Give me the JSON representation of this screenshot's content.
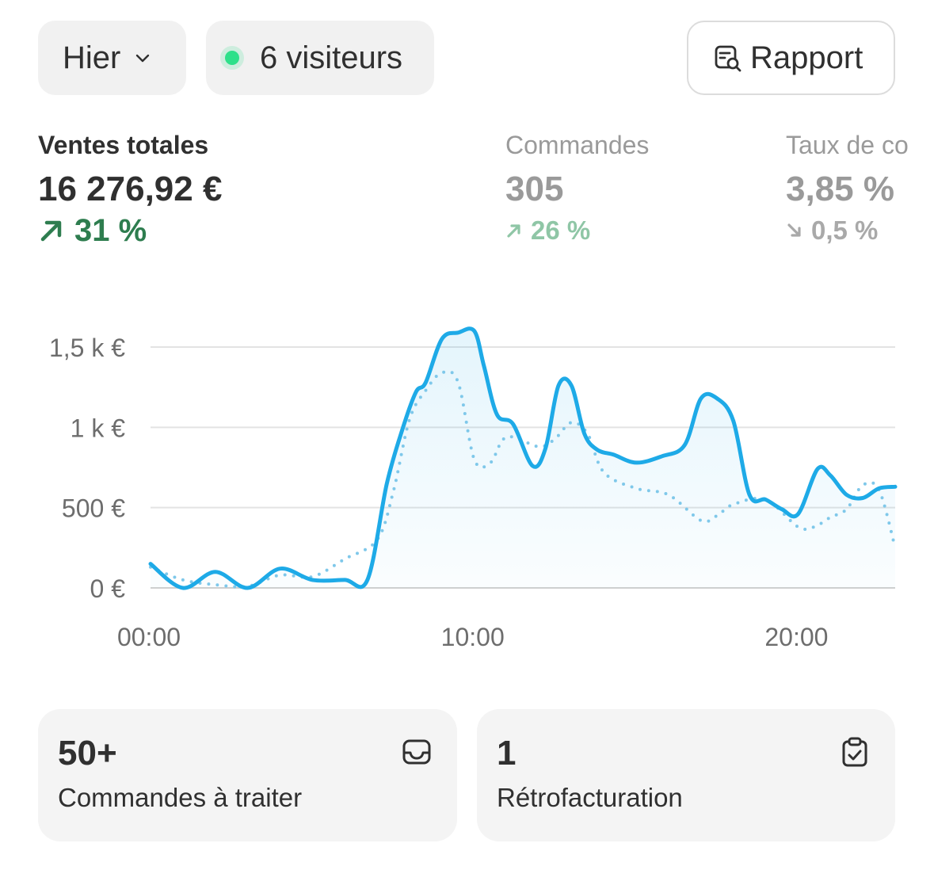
{
  "header": {
    "period_label": "Hier",
    "visitors_label": "6 visiteurs",
    "report_label": "Rapport",
    "live_color": "#2ee08a"
  },
  "metrics": [
    {
      "label": "Ventes totales",
      "value": "16 276,92 €",
      "change": "31 %",
      "trend": "up"
    },
    {
      "label": "Commandes",
      "value": "305",
      "change": "26 %",
      "trend": "up"
    },
    {
      "label": "Taux de co",
      "value": "3,85 %",
      "change": "0,5 %",
      "trend": "down"
    }
  ],
  "chart_data": {
    "type": "line",
    "y_ticks": [
      {
        "value": 0,
        "label": "0 €"
      },
      {
        "value": 500,
        "label": "500 €"
      },
      {
        "value": 1000,
        "label": "1 k €"
      },
      {
        "value": 1500,
        "label": "1,5 k €"
      }
    ],
    "x_ticks": [
      {
        "value": 0,
        "label": "00:00"
      },
      {
        "value": 10,
        "label": "10:00"
      },
      {
        "value": 20,
        "label": "20:00"
      }
    ],
    "xlim": [
      0,
      23
    ],
    "ylim": [
      0,
      1500
    ],
    "grid": true,
    "series": [
      {
        "style": "solid",
        "color": "#1eaae7",
        "x": [
          0,
          1,
          2,
          3,
          4,
          5,
          6,
          6.7,
          7.3,
          7.8,
          8.2,
          8.5,
          9.0,
          9.5,
          10.0,
          10.3,
          10.7,
          11.2,
          11.8,
          12.2,
          12.6,
          13.0,
          13.4,
          13.8,
          14.3,
          15.0,
          15.8,
          16.5,
          17.0,
          17.5,
          18.0,
          18.5,
          19.0,
          19.5,
          20.0,
          20.6,
          21.0,
          21.5,
          22.0,
          22.5,
          23.0
        ],
        "y": [
          150,
          0,
          100,
          0,
          120,
          50,
          50,
          50,
          650,
          1000,
          1220,
          1280,
          1550,
          1590,
          1600,
          1380,
          1080,
          1020,
          760,
          870,
          1260,
          1260,
          960,
          860,
          830,
          780,
          820,
          890,
          1180,
          1180,
          1040,
          580,
          550,
          490,
          460,
          740,
          700,
          580,
          560,
          620,
          630
        ]
      },
      {
        "style": "dotted",
        "color": "#7fc8ea",
        "x": [
          0,
          1,
          2,
          3,
          4,
          5,
          6,
          7,
          7.5,
          8.0,
          8.5,
          9.0,
          9.5,
          10.0,
          10.5,
          11.0,
          12.0,
          12.5,
          13.0,
          13.5,
          14.0,
          15.0,
          16.0,
          17.0,
          17.5,
          18.0,
          19.0,
          20.0,
          20.5,
          21.0,
          21.5,
          22.0,
          22.5,
          23.0
        ],
        "y": [
          130,
          50,
          20,
          10,
          80,
          70,
          180,
          300,
          600,
          1050,
          1230,
          1340,
          1280,
          800,
          780,
          940,
          880,
          930,
          1030,
          960,
          720,
          620,
          580,
          420,
          450,
          520,
          550,
          380,
          380,
          440,
          490,
          640,
          610,
          250
        ]
      }
    ]
  },
  "cards": [
    {
      "number": "50+",
      "label": "Commandes à traiter",
      "icon": "inbox-icon"
    },
    {
      "number": "1",
      "label": "Rétrofacturation",
      "icon": "clipboard-check-icon"
    }
  ]
}
